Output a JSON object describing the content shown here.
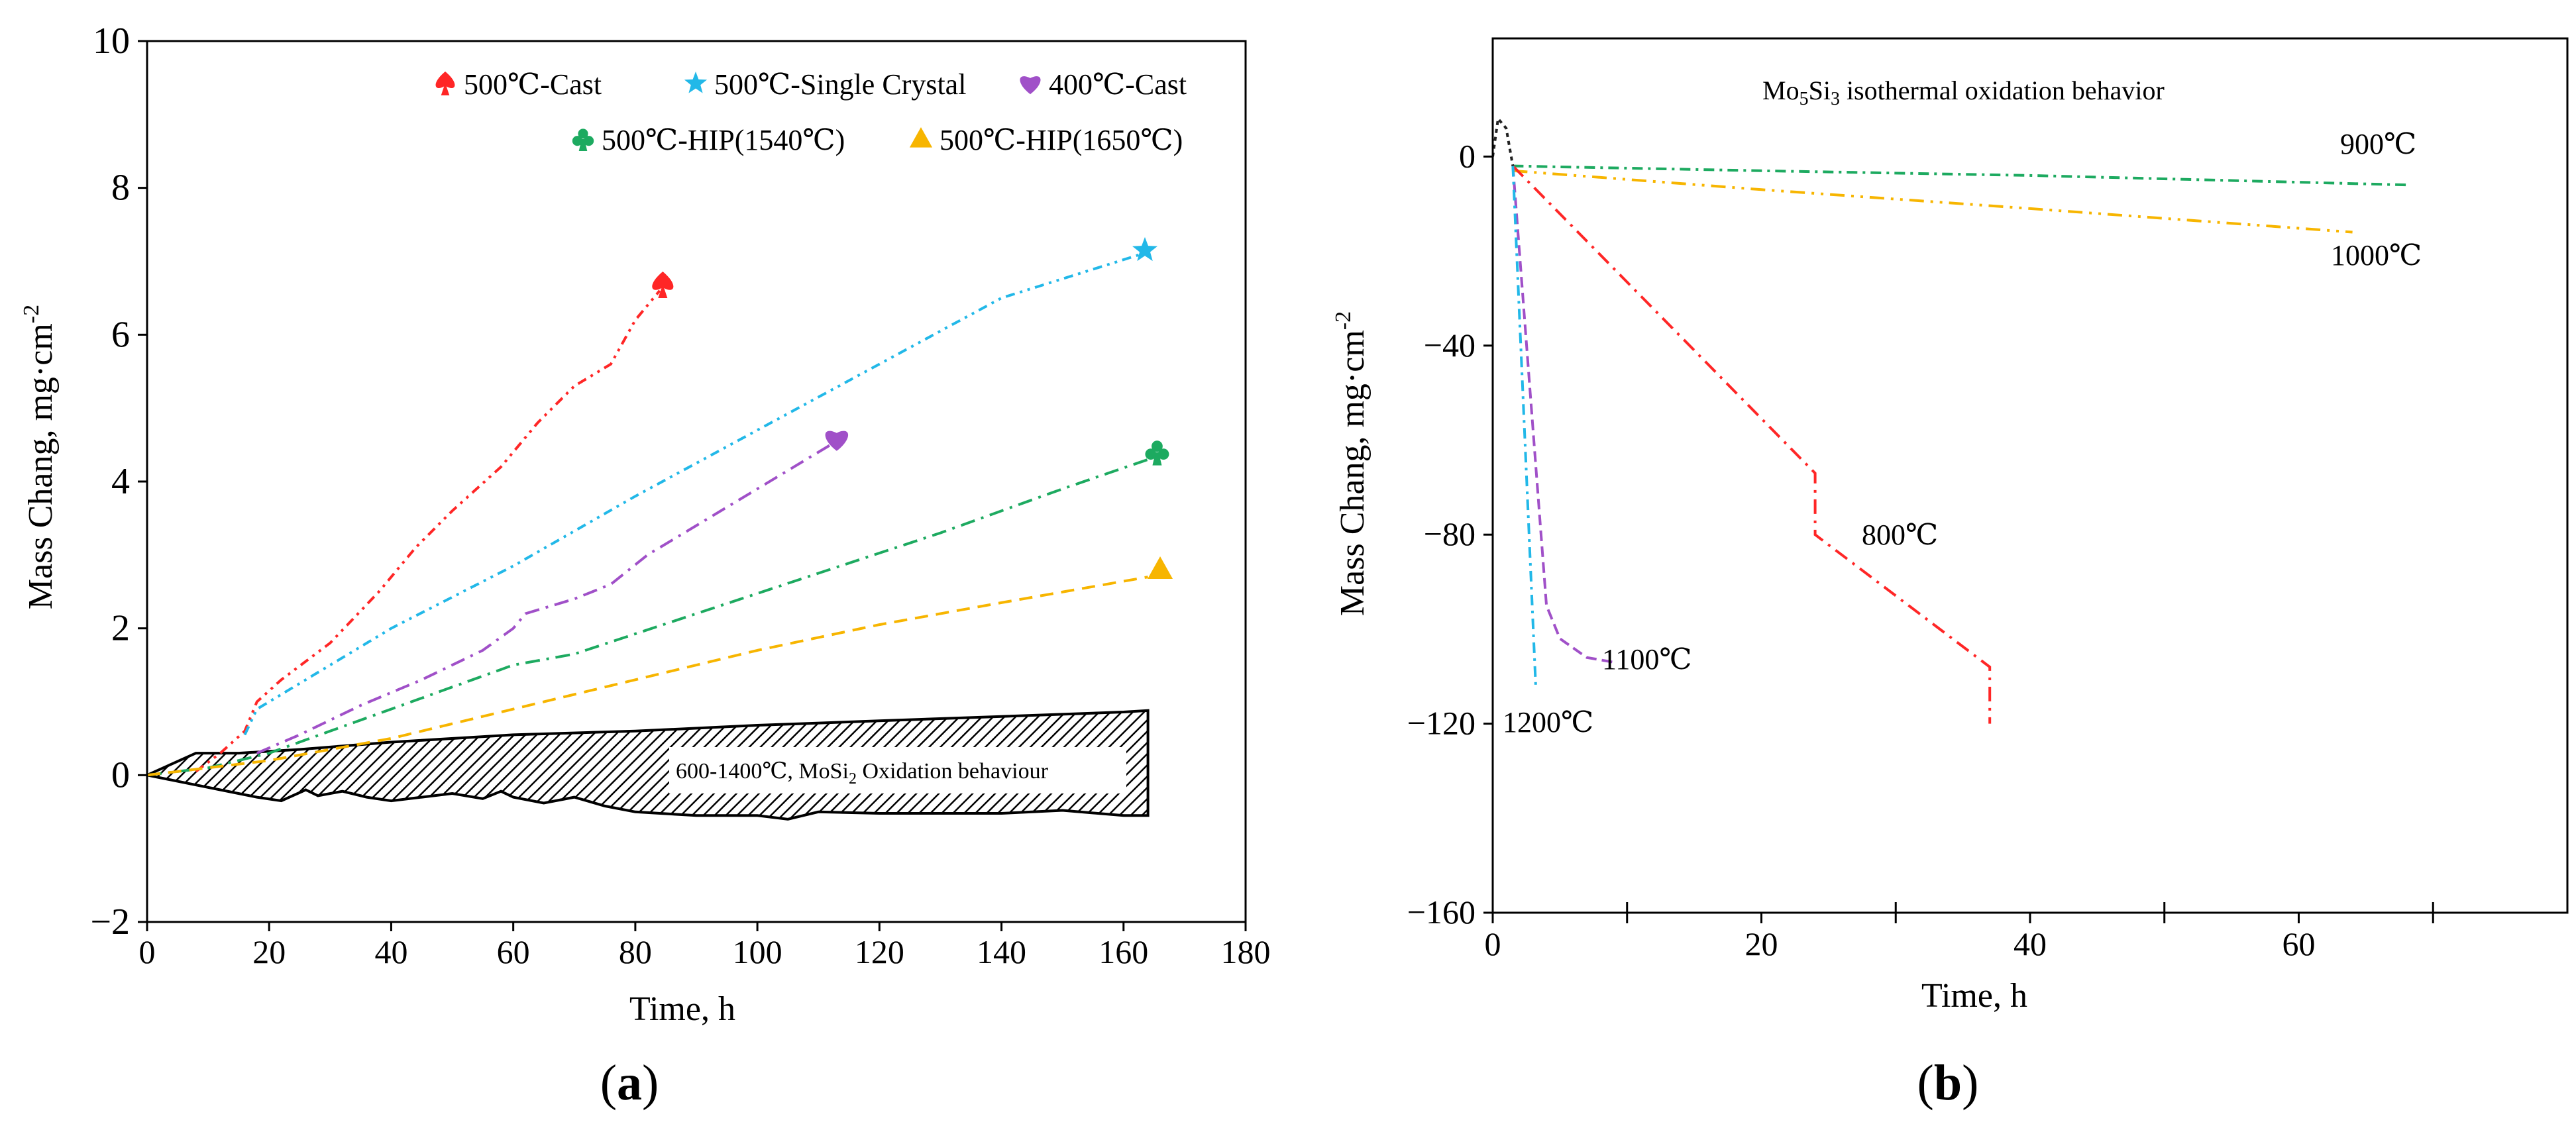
{
  "figure": {
    "panel_a_label": "(a)",
    "panel_b_label": "(b)"
  },
  "chart_data": [
    {
      "type": "line",
      "panel": "a",
      "title": "",
      "xlabel": "Time, h",
      "ylabel": "Mass Chang, mg·cm",
      "ylabel_sup": "-2",
      "xlim": [
        0,
        180
      ],
      "ylim": [
        -2,
        10
      ],
      "xticks": [
        0,
        20,
        40,
        60,
        80,
        100,
        120,
        140,
        160,
        180
      ],
      "yticks": [
        -2,
        0,
        2,
        4,
        6,
        8,
        10
      ],
      "legend_position": "top",
      "band": {
        "label": "600-1400℃, MoSi",
        "label_sub": "2",
        "label_rest": " Oxidation behaviour",
        "upper": [
          [
            0,
            0
          ],
          [
            4,
            0.15
          ],
          [
            8,
            0.3
          ],
          [
            15,
            0.3
          ],
          [
            25,
            0.35
          ],
          [
            40,
            0.45
          ],
          [
            60,
            0.55
          ],
          [
            80,
            0.6
          ],
          [
            100,
            0.68
          ],
          [
            120,
            0.74
          ],
          [
            140,
            0.8
          ],
          [
            160,
            0.86
          ],
          [
            164,
            0.88
          ]
        ],
        "lower": [
          [
            0,
            0
          ],
          [
            6,
            -0.1
          ],
          [
            12,
            -0.2
          ],
          [
            18,
            -0.3
          ],
          [
            22,
            -0.35
          ],
          [
            26,
            -0.2
          ],
          [
            28,
            -0.28
          ],
          [
            32,
            -0.22
          ],
          [
            36,
            -0.3
          ],
          [
            40,
            -0.35
          ],
          [
            45,
            -0.3
          ],
          [
            50,
            -0.25
          ],
          [
            55,
            -0.32
          ],
          [
            58,
            -0.22
          ],
          [
            60,
            -0.3
          ],
          [
            65,
            -0.38
          ],
          [
            70,
            -0.3
          ],
          [
            75,
            -0.42
          ],
          [
            80,
            -0.5
          ],
          [
            90,
            -0.55
          ],
          [
            100,
            -0.55
          ],
          [
            105,
            -0.6
          ],
          [
            110,
            -0.5
          ],
          [
            120,
            -0.52
          ],
          [
            140,
            -0.52
          ],
          [
            150,
            -0.48
          ],
          [
            160,
            -0.55
          ],
          [
            164,
            -0.55
          ]
        ]
      },
      "series": [
        {
          "name": "500℃-Cast",
          "color": "#ff2626",
          "marker": "spade",
          "dash": "14,8,4,8,4,8",
          "points": [
            [
              8,
              0.05
            ],
            [
              12,
              0.3
            ],
            [
              16,
              0.6
            ],
            [
              18,
              1.0
            ],
            [
              22,
              1.3
            ],
            [
              30,
              1.8
            ],
            [
              38,
              2.5
            ],
            [
              44,
              3.1
            ],
            [
              50,
              3.6
            ],
            [
              58,
              4.2
            ],
            [
              64,
              4.8
            ],
            [
              70,
              5.3
            ],
            [
              76,
              5.6
            ],
            [
              80,
              6.2
            ],
            [
              84,
              6.6
            ]
          ],
          "marker_at": [
            84.5,
            6.68
          ]
        },
        {
          "name": "500℃-Single Crystal",
          "color": "#22b8e8",
          "marker": "star",
          "dash": "14,8,4,8,4,8",
          "points": [
            [
              16,
              0.55
            ],
            [
              18,
              0.9
            ],
            [
              40,
              2.0
            ],
            [
              60,
              2.85
            ],
            [
              80,
              3.8
            ],
            [
              100,
              4.7
            ],
            [
              120,
              5.6
            ],
            [
              140,
              6.5
            ],
            [
              163,
              7.1
            ]
          ],
          "marker_at": [
            163.5,
            7.15
          ]
        },
        {
          "name": "400℃-Cast",
          "color": "#a050c8",
          "marker": "heart",
          "dash": "22,10,4,10",
          "points": [
            [
              18,
              0.3
            ],
            [
              25,
              0.55
            ],
            [
              35,
              0.95
            ],
            [
              45,
              1.3
            ],
            [
              55,
              1.7
            ],
            [
              60,
              2.0
            ],
            [
              62,
              2.2
            ],
            [
              70,
              2.4
            ],
            [
              76,
              2.6
            ],
            [
              82,
              3.0
            ],
            [
              90,
              3.4
            ],
            [
              100,
              3.9
            ],
            [
              112,
              4.5
            ]
          ],
          "marker_at": [
            113,
            4.58
          ]
        },
        {
          "name": "500℃-HIP(1540℃)",
          "color": "#1daa60",
          "marker": "club",
          "dash": "22,10,4,10",
          "points": [
            [
              0,
              0
            ],
            [
              10,
              0.1
            ],
            [
              20,
              0.3
            ],
            [
              30,
              0.6
            ],
            [
              40,
              0.9
            ],
            [
              50,
              1.2
            ],
            [
              56,
              1.38
            ],
            [
              60,
              1.5
            ],
            [
              70,
              1.65
            ],
            [
              90,
              2.2
            ],
            [
              110,
              2.75
            ],
            [
              130,
              3.3
            ],
            [
              150,
              3.9
            ],
            [
              164,
              4.3
            ]
          ],
          "marker_at": [
            165.5,
            4.4
          ]
        },
        {
          "name": "500℃-HIP(1650℃)",
          "color": "#f7b500",
          "marker": "triangle",
          "dash": "20,12",
          "points": [
            [
              0,
              0
            ],
            [
              20,
              0.2
            ],
            [
              40,
              0.5
            ],
            [
              60,
              0.9
            ],
            [
              80,
              1.3
            ],
            [
              100,
              1.7
            ],
            [
              120,
              2.05
            ],
            [
              140,
              2.35
            ],
            [
              164,
              2.7
            ]
          ],
          "marker_at": [
            166,
            2.8
          ]
        }
      ]
    },
    {
      "type": "line",
      "panel": "b",
      "title_pre": "Mo",
      "title_sub1": "5",
      "title_mid": "Si",
      "title_sub2": "3",
      "title_post": " isothermal oxidation behavior",
      "xlabel": "Time, h",
      "ylabel": "Mass Chang, mg·cm",
      "ylabel_sup": "-2",
      "xlim": [
        0,
        80
      ],
      "ylim": [
        -160,
        25
      ],
      "xticks_labeled": [
        0,
        20,
        40,
        60
      ],
      "xticks_minor": [
        10,
        30,
        50,
        70
      ],
      "yticks": [
        -160,
        -120,
        -80,
        -40,
        0
      ],
      "legend_position": "inline",
      "series": [
        {
          "name": "900℃",
          "color": "#1daa60",
          "dash": "16,8,4,8",
          "points": [
            [
              1.5,
              -2
            ],
            [
              20,
              -3
            ],
            [
              40,
              -4
            ],
            [
              68,
              -6
            ]
          ]
        },
        {
          "name": "1000℃",
          "color": "#f7b500",
          "dash": "22,10,4,10,4,10",
          "points": [
            [
              1.5,
              -3
            ],
            [
              20,
              -7
            ],
            [
              40,
              -11
            ],
            [
              64,
              -16
            ]
          ]
        },
        {
          "name": "800℃",
          "color": "#ff2626",
          "dash": "22,10,4,10",
          "points": [
            [
              1.5,
              -2
            ],
            [
              24,
              -67
            ],
            [
              24,
              -80
            ],
            [
              37,
              -108
            ],
            [
              37,
              -120
            ]
          ]
        },
        {
          "name": "1100℃",
          "color": "#a050c8",
          "dash": "16,8",
          "points": [
            [
              1.5,
              -2
            ],
            [
              4,
              -95
            ],
            [
              5,
              -102
            ],
            [
              7,
              -106
            ],
            [
              9,
              -107
            ]
          ]
        },
        {
          "name": "1200℃",
          "color": "#22b8e8",
          "dash": "16,8,4,8",
          "points": [
            [
              1.5,
              -2
            ],
            [
              3.2,
              -112
            ]
          ]
        },
        {
          "name": "initial",
          "color": "#222222",
          "dash": "6,6",
          "points": [
            [
              0,
              0
            ],
            [
              0.4,
              8
            ],
            [
              1.0,
              6
            ],
            [
              1.5,
              -2
            ]
          ]
        }
      ],
      "line_labels": {
        "900": "900℃",
        "1000": "1000℃",
        "800": "800℃",
        "1100": "1100℃",
        "1200": "1200℃"
      }
    }
  ]
}
